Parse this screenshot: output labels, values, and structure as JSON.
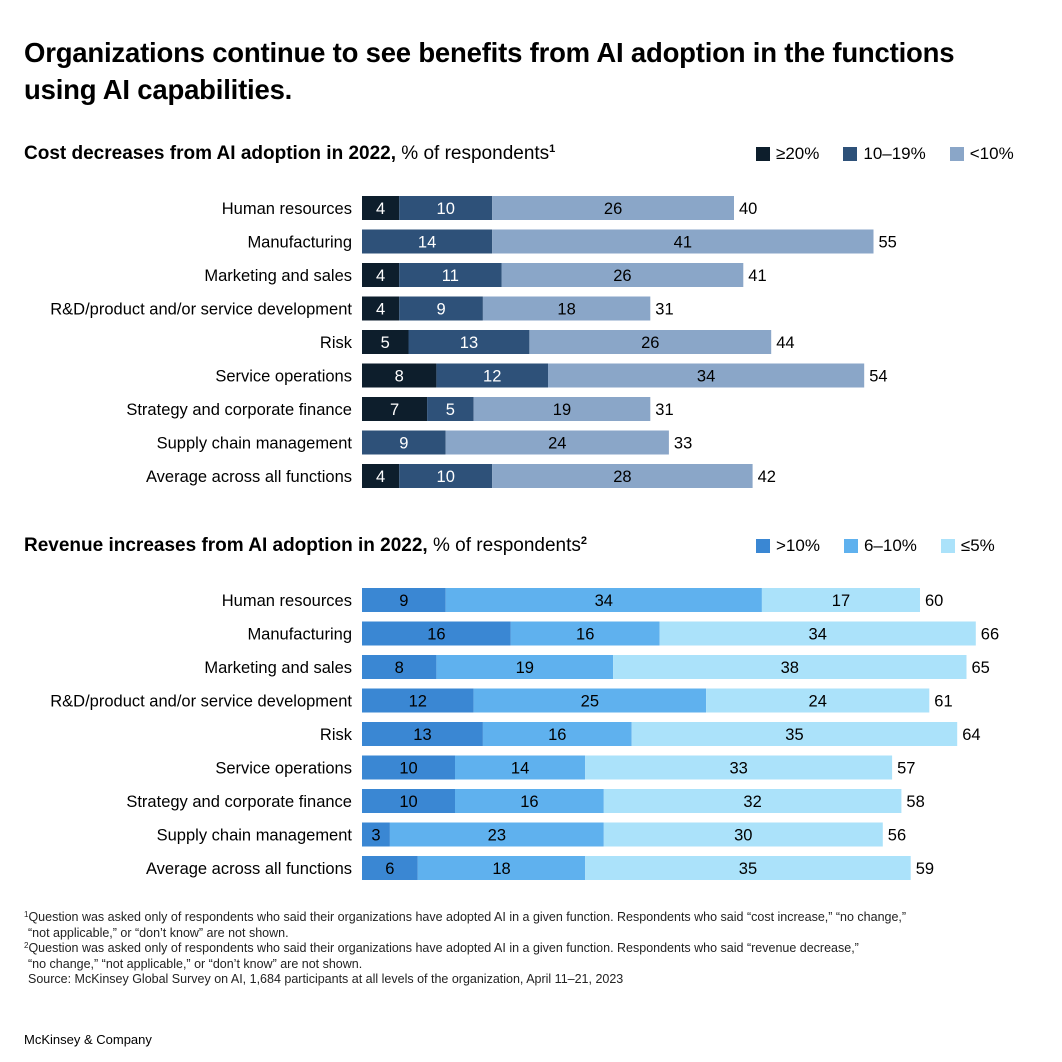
{
  "title": "Organizations continue to see benefits from AI adoption in the functions using AI capabilities.",
  "colors": {
    "cost_ge20": "#0d1e2c",
    "cost_10_19": "#2e5179",
    "cost_lt10": "#8aa6c8",
    "rev_gt10": "#3a87d3",
    "rev_6_10": "#5fb1ee",
    "rev_le5": "#abe2fa"
  },
  "chart_data": [
    {
      "type": "bar",
      "orientation": "horizontal",
      "stacked": true,
      "title_bold": "Cost decreases from AI adoption in 2022,",
      "title_normal": "% of respondents",
      "title_sup": "1",
      "legend_position": "top-right",
      "categories": [
        "Human resources",
        "Manufacturing",
        "Marketing and sales",
        "R&D/product and/or service development",
        "Risk",
        "Service operations",
        "Strategy and corporate finance",
        "Supply chain management",
        "Average across all functions"
      ],
      "series": [
        {
          "name": "≥20%",
          "color": "#0d1e2c",
          "text_color": "#ffffff",
          "values": [
            4,
            0,
            4,
            4,
            5,
            8,
            7,
            0,
            4
          ]
        },
        {
          "name": "10–19%",
          "color": "#2e5179",
          "text_color": "#ffffff",
          "values": [
            10,
            14,
            11,
            9,
            13,
            12,
            5,
            9,
            10
          ]
        },
        {
          "name": "<10%",
          "color": "#8aa6c8",
          "text_color": "#000000",
          "values": [
            26,
            41,
            26,
            18,
            26,
            34,
            19,
            24,
            28
          ]
        }
      ],
      "totals": [
        40,
        55,
        41,
        31,
        44,
        54,
        31,
        33,
        42
      ]
    },
    {
      "type": "bar",
      "orientation": "horizontal",
      "stacked": true,
      "title_bold": "Revenue increases from AI adoption in 2022,",
      "title_normal": "% of respondents",
      "title_sup": "2",
      "legend_position": "top-right",
      "categories": [
        "Human resources",
        "Manufacturing",
        "Marketing and sales",
        "R&D/product and/or service development",
        "Risk",
        "Service operations",
        "Strategy and corporate finance",
        "Supply chain management",
        "Average across all functions"
      ],
      "series": [
        {
          "name": ">10%",
          "color": "#3a87d3",
          "text_color": "#000000",
          "values": [
            9,
            16,
            8,
            12,
            13,
            10,
            10,
            3,
            6
          ]
        },
        {
          "name": "6–10%",
          "color": "#5fb1ee",
          "text_color": "#000000",
          "values": [
            34,
            16,
            19,
            25,
            16,
            14,
            16,
            23,
            18
          ]
        },
        {
          "name": "≤5%",
          "color": "#abe2fa",
          "text_color": "#000000",
          "values": [
            17,
            34,
            38,
            24,
            35,
            33,
            32,
            30,
            35
          ]
        }
      ],
      "totals": [
        60,
        66,
        65,
        61,
        64,
        57,
        58,
        56,
        59
      ]
    }
  ],
  "footnotes": [
    {
      "sup": "1",
      "line1": "Question was asked only of respondents who said their organizations have adopted AI in a given function. Respondents who said “cost increase,” “no change,”",
      "line2": "“not applicable,” or “don’t know” are not shown."
    },
    {
      "sup": "2",
      "line1": "Question was asked only of respondents who said their organizations have adopted AI in a given function. Respondents who said “revenue decrease,”",
      "line2": "“no change,” “not applicable,” or “don’t know” are not shown."
    }
  ],
  "source": "Source: McKinsey Global Survey on AI, 1,684 participants at all levels of the organization, April 11–21, 2023",
  "brand": "McKinsey & Company"
}
